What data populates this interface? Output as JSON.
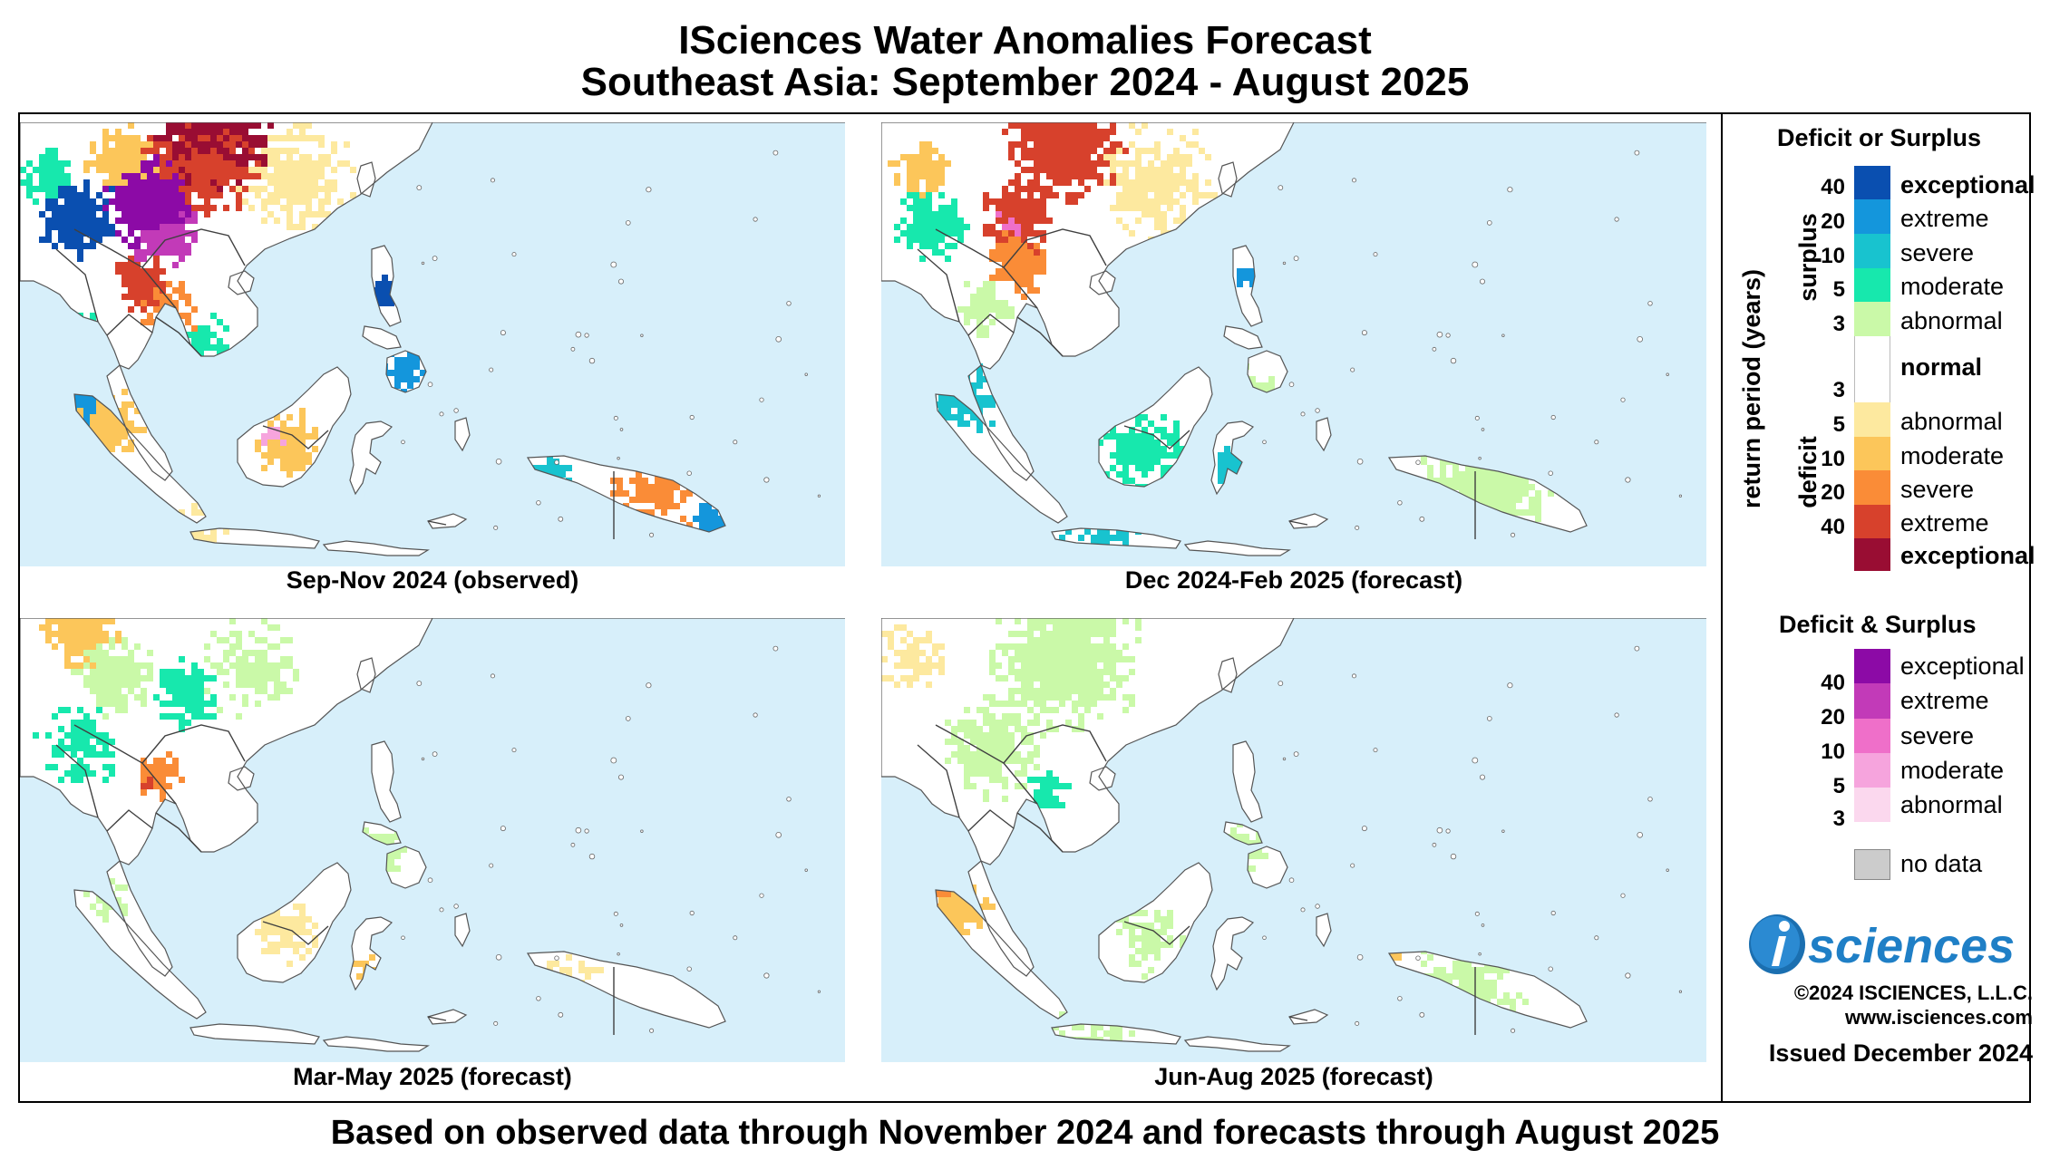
{
  "title_line1": "ISciences Water Anomalies Forecast",
  "title_line2": "Southeast Asia: September 2024 - August 2025",
  "footer": "Based on observed data through November 2024 and forecasts through August 2025",
  "panels": [
    {
      "caption": "Sep-Nov 2024 (observed)",
      "profile": 0
    },
    {
      "caption": "Dec 2024-Feb 2025 (forecast)",
      "profile": 1
    },
    {
      "caption": "Mar-May 2025 (forecast)",
      "profile": 2
    },
    {
      "caption": "Jun-Aug 2025 (forecast)",
      "profile": 3
    }
  ],
  "legend": {
    "deficit_surplus_title": "Deficit or Surplus",
    "return_period_label": "return period (years)",
    "surplus_label": "surplus",
    "deficit_label": "deficit",
    "ds_items": [
      {
        "label": "exceptional",
        "color": "#0a4fb0",
        "bold": true
      },
      {
        "label": "extreme",
        "color": "#1496dc",
        "bold": false
      },
      {
        "label": "severe",
        "color": "#18c3cf",
        "bold": false
      },
      {
        "label": "moderate",
        "color": "#17e8ad",
        "bold": false
      },
      {
        "label": "abnormal",
        "color": "#caf9a8",
        "bold": false
      },
      {
        "label": "normal",
        "color": "#ffffff",
        "bold": true
      },
      {
        "label": "abnormal",
        "color": "#fde99f",
        "bold": false
      },
      {
        "label": "moderate",
        "color": "#fcc65a",
        "bold": false
      },
      {
        "label": "severe",
        "color": "#fa8c37",
        "bold": false
      },
      {
        "label": "extreme",
        "color": "#d7412c",
        "bold": false
      },
      {
        "label": "exceptional",
        "color": "#990d33",
        "bold": true
      }
    ],
    "surplus_ticks": [
      "40",
      "20",
      "10",
      "5",
      "3"
    ],
    "deficit_ticks": [
      "3",
      "5",
      "10",
      "20",
      "40"
    ],
    "both_title": "Deficit & Surplus",
    "both_items": [
      {
        "label": "exceptional",
        "color": "#8c0aa6"
      },
      {
        "label": "extreme",
        "color": "#c23ab8"
      },
      {
        "label": "severe",
        "color": "#ef6fc9"
      },
      {
        "label": "moderate",
        "color": "#f6a4dd"
      },
      {
        "label": "abnormal",
        "color": "#fbd8ee"
      }
    ],
    "both_ticks": [
      "40",
      "20",
      "10",
      "5",
      "3"
    ],
    "nodata_label": "no data",
    "nodata_color": "#cccccc"
  },
  "logo_text": "sciences",
  "logo_i": "i",
  "copyright": "©2024 ISCIENCES, L.L.C.",
  "website": "www.isciences.com",
  "issued": "Issued December 2024",
  "colors": {
    "ocean": "#d7effa",
    "land": "#ffffff",
    "border": "#404040"
  }
}
